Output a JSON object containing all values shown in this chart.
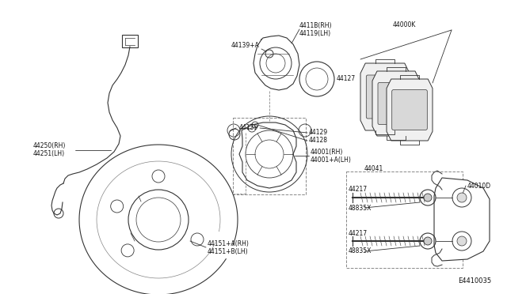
{
  "bg_color": "#ffffff",
  "diagram_ref": "E4410035",
  "text_color": "#111111",
  "line_color": "#333333",
  "labels": {
    "44118_rh": "4411B(RH)",
    "44119_lh": "44119(LH)",
    "44139a": "44139+A",
    "44127": "44127",
    "44139": "44139",
    "44129": "44129",
    "44128": "44128",
    "44001_rh": "44001(RH)",
    "44001a_lh": "44001+A(LH)",
    "44041": "44041",
    "44000k": "44000K",
    "44010d": "44010D",
    "44217a": "44217",
    "48835xa": "48835X",
    "44217b": "44217",
    "48835xb": "48835X",
    "44250_rh": "44250(RH)",
    "44251_lh": "44251(LH)",
    "44151a_rh": "44151+A(RH)",
    "44151b_lh": "44151+B(LH)"
  }
}
